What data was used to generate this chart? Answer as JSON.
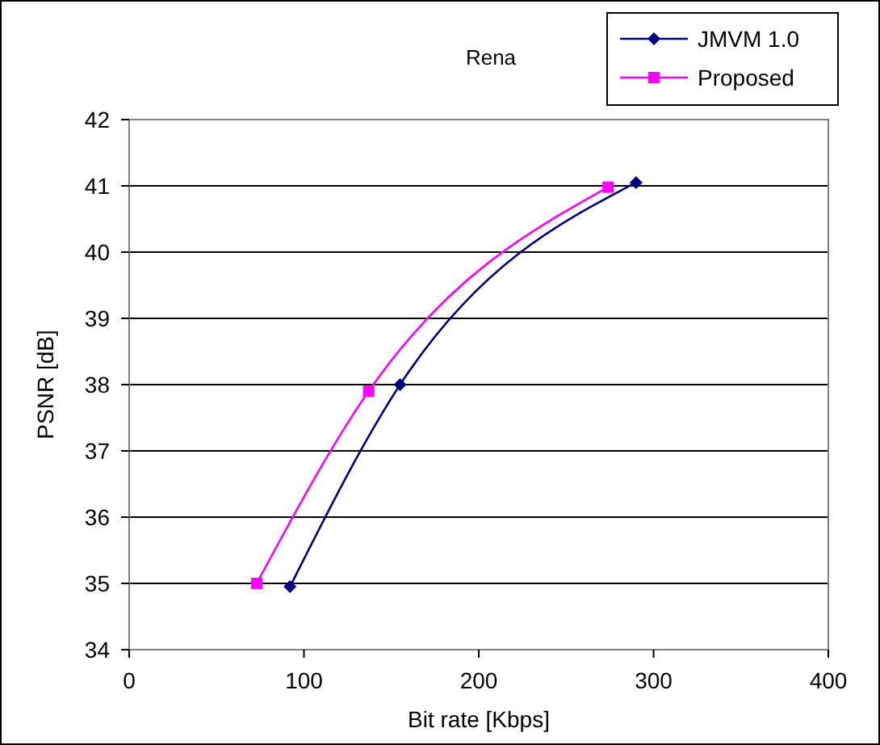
{
  "chart_data": {
    "type": "line",
    "title": "Rena",
    "xlabel": "Bit rate [Kbps]",
    "ylabel": "PSNR [dB]",
    "xlim": [
      0,
      400
    ],
    "xticks": [
      0,
      100,
      200,
      300,
      400
    ],
    "ylim": [
      34,
      42
    ],
    "yticks": [
      34,
      35,
      36,
      37,
      38,
      39,
      40,
      41,
      42
    ],
    "grid": "y",
    "legend": "top right",
    "series": [
      {
        "name": "JMVM 1.0",
        "color": "#000080",
        "marker": "diamond",
        "x": [
          92,
          155,
          290
        ],
        "values": [
          34.95,
          38.0,
          41.05
        ]
      },
      {
        "name": "Proposed",
        "color": "#ff00ff",
        "marker": "square",
        "x": [
          73,
          137,
          274
        ],
        "values": [
          35.0,
          37.9,
          40.98
        ]
      }
    ]
  }
}
